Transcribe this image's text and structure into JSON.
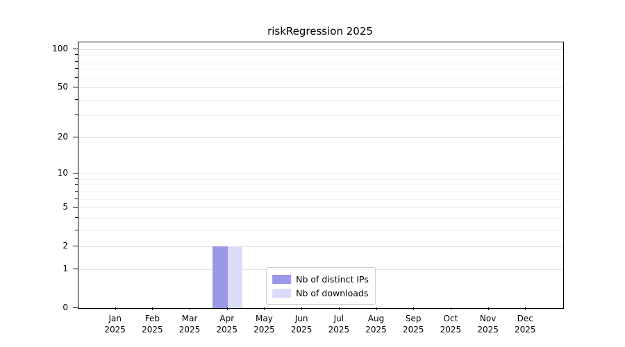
{
  "chart_data": {
    "type": "bar",
    "title": "riskRegression 2025",
    "categories": [
      "Jan",
      "Feb",
      "Mar",
      "Apr",
      "May",
      "Jun",
      "Jul",
      "Aug",
      "Sep",
      "Oct",
      "Nov",
      "Dec"
    ],
    "year_labels": [
      "2025",
      "2025",
      "2025",
      "2025",
      "2025",
      "2025",
      "2025",
      "2025",
      "2025",
      "2025",
      "2025",
      "2025"
    ],
    "series": [
      {
        "name": "Nb of distinct IPs",
        "color": "#9a99e8",
        "values": [
          0,
          0,
          0,
          2,
          0,
          0,
          0,
          0,
          0,
          0,
          0,
          0
        ]
      },
      {
        "name": "Nb of downloads",
        "color": "#dcdcf8",
        "values": [
          0,
          0,
          0,
          2,
          0,
          0,
          0,
          0,
          0,
          0,
          0,
          0
        ]
      }
    ],
    "yscale": "log1p",
    "ylim_top": 100,
    "yticks": [
      0,
      1,
      2,
      5,
      10,
      20,
      50,
      100
    ],
    "major_gridlines": [
      1,
      2,
      5,
      10,
      20,
      50,
      100
    ],
    "minor_gridlines": [
      3,
      4,
      6,
      7,
      8,
      9,
      30,
      40,
      60,
      70,
      80,
      90
    ],
    "legend_position": "lower center",
    "grid": true
  }
}
